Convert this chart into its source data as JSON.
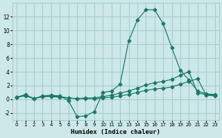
{
  "xlabel": "Humidex (Indice chaleur)",
  "background_color": "#cce8e8",
  "grid_color": "#aacccc",
  "line_color": "#1a7a6a",
  "xlim": [
    -0.5,
    23.5
  ],
  "ylim": [
    -3,
    14
  ],
  "xticks": [
    0,
    1,
    2,
    3,
    4,
    5,
    6,
    7,
    8,
    9,
    10,
    11,
    12,
    13,
    14,
    15,
    16,
    17,
    18,
    19,
    20,
    21,
    22,
    23
  ],
  "yticks": [
    -2,
    0,
    2,
    4,
    6,
    8,
    10,
    12
  ],
  "series": [
    {
      "x": [
        0,
        1,
        2,
        3,
        4,
        5,
        6,
        7,
        8,
        9,
        10,
        11,
        12,
        13,
        14,
        15,
        16,
        17,
        18,
        19,
        20,
        21,
        22,
        23
      ],
      "y": [
        0.3,
        0.7,
        0.1,
        0.5,
        0.6,
        0.5,
        -0.2,
        -2.5,
        -2.4,
        -1.8,
        1.0,
        1.2,
        2.2,
        8.5,
        11.5,
        13.0,
        13.0,
        11.0,
        7.5,
        4.2,
        2.8,
        1.2,
        0.8,
        0.7
      ]
    },
    {
      "x": [
        0,
        1,
        2,
        3,
        4,
        5,
        6,
        7,
        8,
        9,
        10,
        11,
        12,
        13,
        14,
        15,
        16,
        17,
        18,
        19,
        20,
        21,
        22,
        23
      ],
      "y": [
        0.3,
        0.6,
        0.1,
        0.4,
        0.5,
        0.4,
        0.2,
        0.1,
        0.2,
        0.2,
        0.4,
        0.6,
        0.9,
        1.2,
        1.6,
        2.1,
        2.4,
        2.6,
        2.9,
        3.5,
        4.0,
        0.9,
        0.7,
        0.6
      ]
    },
    {
      "x": [
        0,
        1,
        2,
        3,
        4,
        5,
        6,
        7,
        8,
        9,
        10,
        11,
        12,
        13,
        14,
        15,
        16,
        17,
        18,
        19,
        20,
        21,
        22,
        23
      ],
      "y": [
        0.3,
        0.5,
        0.1,
        0.4,
        0.4,
        0.3,
        0.2,
        0.1,
        0.1,
        0.1,
        0.2,
        0.3,
        0.5,
        0.7,
        1.0,
        1.3,
        1.5,
        1.6,
        1.8,
        2.2,
        2.6,
        3.0,
        0.6,
        0.5
      ]
    }
  ]
}
